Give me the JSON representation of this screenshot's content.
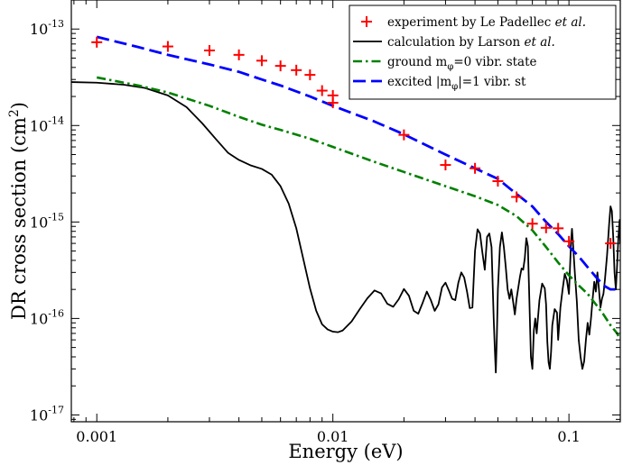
{
  "chart_data": {
    "type": "line",
    "xscale": "log",
    "yscale": "log",
    "xlim": [
      0.00078,
      0.165
    ],
    "ylim": [
      8.5e-18,
      2e-13
    ],
    "xlabel": "Energy (eV)",
    "ylabel": {
      "main": "DR cross section (cm",
      "sup": "2",
      "close": ")"
    },
    "x_ticks": [
      {
        "value": 0.001,
        "label": "0.001"
      },
      {
        "value": 0.01,
        "label": "0.01"
      },
      {
        "value": 0.1,
        "label": "0.1"
      }
    ],
    "y_ticks": [
      {
        "value": 1e-17,
        "base": "10",
        "exp": "-17"
      },
      {
        "value": 1e-16,
        "base": "10",
        "exp": "-16"
      },
      {
        "value": 1e-15,
        "base": "10",
        "exp": "-15"
      },
      {
        "value": 1e-14,
        "base": "10",
        "exp": "-14"
      },
      {
        "value": 1e-13,
        "base": "10",
        "exp": "-13"
      }
    ],
    "legend_position": "top-right",
    "series": [
      {
        "name": "experiment",
        "label": {
          "text": "experiment by Le Padellec ",
          "italic": "et al."
        },
        "style": "marker-plus",
        "color": "#ff0000",
        "points": [
          [
            0.001,
            7.3e-14
          ],
          [
            0.002,
            6.6e-14
          ],
          [
            0.003,
            6e-14
          ],
          [
            0.004,
            5.4e-14
          ],
          [
            0.005,
            4.7e-14
          ],
          [
            0.006,
            4.15e-14
          ],
          [
            0.007,
            3.75e-14
          ],
          [
            0.008,
            3.35e-14
          ],
          [
            0.009,
            2.3e-14
          ],
          [
            0.01,
            2.05e-14
          ],
          [
            0.01,
            1.72e-14
          ],
          [
            0.02,
            8e-15
          ],
          [
            0.03,
            3.9e-15
          ],
          [
            0.04,
            3.6e-15
          ],
          [
            0.05,
            2.65e-15
          ],
          [
            0.06,
            1.82e-15
          ],
          [
            0.07,
            9.6e-16
          ],
          [
            0.08,
            8.7e-16
          ],
          [
            0.09,
            8.6e-16
          ],
          [
            0.1,
            6.3e-16
          ],
          [
            0.15,
            6e-16
          ]
        ]
      },
      {
        "name": "larson",
        "label": {
          "text": " calculation by Larson  ",
          "italic": "et al."
        },
        "style": "solid",
        "color": "#000000",
        "points": [
          [
            0.00078,
            2.82e-14
          ],
          [
            0.001,
            2.78e-14
          ],
          [
            0.0013,
            2.65e-14
          ],
          [
            0.0016,
            2.45e-14
          ],
          [
            0.002,
            2.05e-14
          ],
          [
            0.0024,
            1.55e-14
          ],
          [
            0.0028,
            1.05e-14
          ],
          [
            0.0032,
            7.2e-15
          ],
          [
            0.0036,
            5.2e-15
          ],
          [
            0.004,
            4.4e-15
          ],
          [
            0.0045,
            3.85e-15
          ],
          [
            0.005,
            3.55e-15
          ],
          [
            0.0055,
            3.1e-15
          ],
          [
            0.006,
            2.35e-15
          ],
          [
            0.0065,
            1.55e-15
          ],
          [
            0.007,
            8.6e-16
          ],
          [
            0.0075,
            4.1e-16
          ],
          [
            0.008,
            2.05e-16
          ],
          [
            0.0085,
            1.2e-16
          ],
          [
            0.009,
            8.7e-17
          ],
          [
            0.0095,
            7.7e-17
          ],
          [
            0.01,
            7.3e-17
          ],
          [
            0.0105,
            7.2e-17
          ],
          [
            0.011,
            7.5e-17
          ],
          [
            0.012,
            9.3e-17
          ],
          [
            0.013,
            1.25e-16
          ],
          [
            0.014,
            1.62e-16
          ],
          [
            0.015,
            1.95e-16
          ],
          [
            0.016,
            1.82e-16
          ],
          [
            0.017,
            1.42e-16
          ],
          [
            0.018,
            1.32e-16
          ],
          [
            0.019,
            1.58e-16
          ],
          [
            0.02,
            2.02e-16
          ],
          [
            0.021,
            1.72e-16
          ],
          [
            0.022,
            1.2e-16
          ],
          [
            0.023,
            1.12e-16
          ],
          [
            0.024,
            1.45e-16
          ],
          [
            0.025,
            1.9e-16
          ],
          [
            0.026,
            1.55e-16
          ],
          [
            0.027,
            1.2e-16
          ],
          [
            0.028,
            1.4e-16
          ],
          [
            0.029,
            2.1e-16
          ],
          [
            0.03,
            2.35e-16
          ],
          [
            0.031,
            1.95e-16
          ],
          [
            0.032,
            1.6e-16
          ],
          [
            0.033,
            1.55e-16
          ],
          [
            0.034,
            2.35e-16
          ],
          [
            0.035,
            3e-16
          ],
          [
            0.036,
            2.65e-16
          ],
          [
            0.037,
            1.9e-16
          ],
          [
            0.038,
            1.28e-16
          ],
          [
            0.039,
            1.3e-16
          ],
          [
            0.04,
            5e-16
          ],
          [
            0.041,
            8.4e-16
          ],
          [
            0.042,
            7.6e-16
          ],
          [
            0.043,
            4.8e-16
          ],
          [
            0.044,
            3.2e-16
          ],
          [
            0.045,
            7e-16
          ],
          [
            0.046,
            7.6e-16
          ],
          [
            0.047,
            5.5e-16
          ],
          [
            0.048,
            1e-16
          ],
          [
            0.0485,
            5e-17
          ],
          [
            0.049,
            2.75e-17
          ],
          [
            0.0495,
            6.5e-17
          ],
          [
            0.05,
            2e-16
          ],
          [
            0.051,
            5.5e-16
          ],
          [
            0.052,
            7.8e-16
          ],
          [
            0.053,
            5.5e-16
          ],
          [
            0.054,
            3.4e-16
          ],
          [
            0.055,
            2e-16
          ],
          [
            0.056,
            1.6e-16
          ],
          [
            0.057,
            2e-16
          ],
          [
            0.058,
            1.5e-16
          ],
          [
            0.059,
            1.1e-16
          ],
          [
            0.06,
            1.6e-16
          ],
          [
            0.062,
            2.7e-16
          ],
          [
            0.063,
            3.3e-16
          ],
          [
            0.064,
            3.2e-16
          ],
          [
            0.065,
            4.2e-16
          ],
          [
            0.066,
            6.8e-16
          ],
          [
            0.067,
            5.6e-16
          ],
          [
            0.068,
            1.5e-16
          ],
          [
            0.069,
            4e-17
          ],
          [
            0.07,
            3e-17
          ],
          [
            0.071,
            7.5e-17
          ],
          [
            0.072,
            1e-16
          ],
          [
            0.073,
            7e-17
          ],
          [
            0.075,
            1.55e-16
          ],
          [
            0.077,
            2.3e-16
          ],
          [
            0.079,
            2.05e-16
          ],
          [
            0.08,
            1.4e-16
          ],
          [
            0.081,
            5.7e-17
          ],
          [
            0.082,
            3.5e-17
          ],
          [
            0.083,
            3e-17
          ],
          [
            0.084,
            4.5e-17
          ],
          [
            0.085,
            8.5e-17
          ],
          [
            0.087,
            1.25e-16
          ],
          [
            0.089,
            1.15e-16
          ],
          [
            0.09,
            6e-17
          ],
          [
            0.092,
            1.3e-16
          ],
          [
            0.094,
            2e-16
          ],
          [
            0.096,
            2.9e-16
          ],
          [
            0.098,
            2.5e-16
          ],
          [
            0.1,
            1.8e-16
          ],
          [
            0.102,
            6e-16
          ],
          [
            0.103,
            8.5e-16
          ],
          [
            0.104,
            6e-16
          ],
          [
            0.106,
            2.9e-16
          ],
          [
            0.108,
            1.5e-16
          ],
          [
            0.11,
            6e-17
          ],
          [
            0.112,
            4e-17
          ],
          [
            0.114,
            3e-17
          ],
          [
            0.116,
            3.6e-17
          ],
          [
            0.118,
            6e-17
          ],
          [
            0.12,
            9e-17
          ],
          [
            0.122,
            6.8e-17
          ],
          [
            0.124,
            1e-16
          ],
          [
            0.126,
            1.6e-16
          ],
          [
            0.128,
            2.4e-16
          ],
          [
            0.13,
            1.9e-16
          ],
          [
            0.132,
            3e-16
          ],
          [
            0.134,
            2e-16
          ],
          [
            0.136,
            1.3e-16
          ],
          [
            0.138,
            1.6e-16
          ],
          [
            0.14,
            1.8e-16
          ],
          [
            0.142,
            2.5e-16
          ],
          [
            0.145,
            4.5e-16
          ],
          [
            0.148,
            9.5e-16
          ],
          [
            0.15,
            1.45e-15
          ],
          [
            0.152,
            1.3e-15
          ],
          [
            0.154,
            7e-16
          ],
          [
            0.156,
            3e-16
          ],
          [
            0.158,
            2e-16
          ],
          [
            0.16,
            3.6e-16
          ],
          [
            0.162,
            7e-16
          ],
          [
            0.164,
            1.05e-15
          ],
          [
            0.165,
            6e-16
          ]
        ]
      },
      {
        "name": "ground",
        "label": {
          "text": "ground m",
          "sub": "φ",
          "after": "=0 vibr. state"
        },
        "style": "dash-dot",
        "color": "#008000",
        "points": [
          [
            0.001,
            3.15e-14
          ],
          [
            0.0015,
            2.6e-14
          ],
          [
            0.002,
            2.2e-14
          ],
          [
            0.003,
            1.6e-14
          ],
          [
            0.004,
            1.23e-14
          ],
          [
            0.005,
            1.02e-14
          ],
          [
            0.006,
            9e-15
          ],
          [
            0.008,
            7.3e-15
          ],
          [
            0.01,
            6e-15
          ],
          [
            0.015,
            4.2e-15
          ],
          [
            0.02,
            3.3e-15
          ],
          [
            0.03,
            2.35e-15
          ],
          [
            0.04,
            1.85e-15
          ],
          [
            0.05,
            1.5e-15
          ],
          [
            0.06,
            1.15e-15
          ],
          [
            0.07,
            8.2e-16
          ],
          [
            0.08,
            5.5e-16
          ],
          [
            0.09,
            3.8e-16
          ],
          [
            0.1,
            2.8e-16
          ],
          [
            0.11,
            2.2e-16
          ],
          [
            0.12,
            1.8e-16
          ],
          [
            0.13,
            1.4e-16
          ],
          [
            0.14,
            1.1e-16
          ],
          [
            0.15,
            8.5e-17
          ],
          [
            0.16,
            7e-17
          ],
          [
            0.165,
            6e-17
          ]
        ]
      },
      {
        "name": "excited",
        "label": {
          "text": "excited |m",
          "sub": "φ",
          "after": "|=1 vibr. st"
        },
        "style": "dashed",
        "color": "#0000ff",
        "points": [
          [
            0.001,
            8.3e-14
          ],
          [
            0.0015,
            6.5e-14
          ],
          [
            0.002,
            5.4e-14
          ],
          [
            0.003,
            4.3e-14
          ],
          [
            0.004,
            3.6e-14
          ],
          [
            0.005,
            3e-14
          ],
          [
            0.006,
            2.6e-14
          ],
          [
            0.008,
            2e-14
          ],
          [
            0.01,
            1.6e-14
          ],
          [
            0.015,
            1.1e-14
          ],
          [
            0.02,
            8.1e-15
          ],
          [
            0.03,
            5e-15
          ],
          [
            0.04,
            3.6e-15
          ],
          [
            0.05,
            2.8e-15
          ],
          [
            0.06,
            1.95e-15
          ],
          [
            0.07,
            1.45e-15
          ],
          [
            0.08,
            1e-15
          ],
          [
            0.09,
            7.5e-16
          ],
          [
            0.1,
            5.6e-16
          ],
          [
            0.11,
            4.4e-16
          ],
          [
            0.12,
            3.4e-16
          ],
          [
            0.13,
            2.7e-16
          ],
          [
            0.14,
            2.2e-16
          ],
          [
            0.15,
            2e-16
          ],
          [
            0.165,
            2e-16
          ]
        ]
      }
    ]
  }
}
